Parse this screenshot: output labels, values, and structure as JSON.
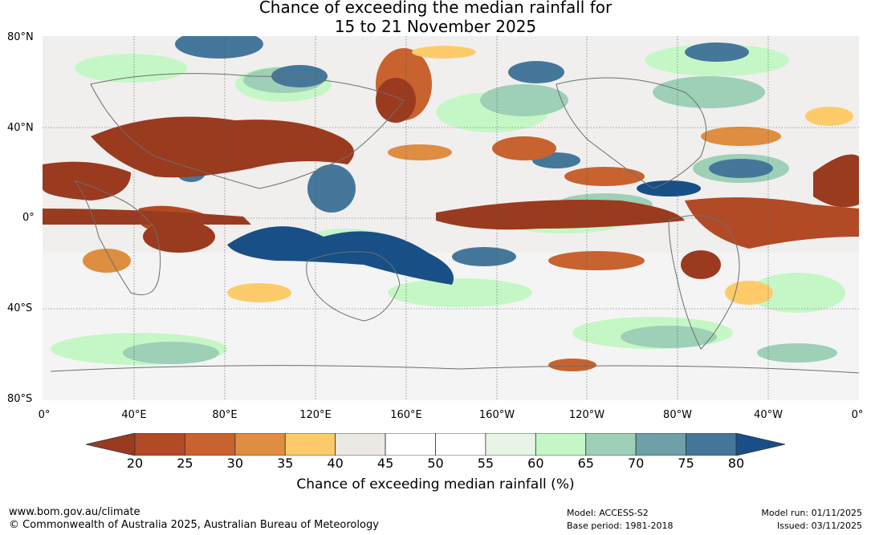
{
  "title": {
    "line1": "Chance of exceeding the median rainfall for",
    "line2": "15 to 21 November 2025"
  },
  "lat_labels": [
    "80°N",
    "40°N",
    "0°",
    "40°S",
    "80°S"
  ],
  "lon_labels": [
    "0°",
    "40°E",
    "80°E",
    "120°E",
    "160°E",
    "160°W",
    "120°W",
    "80°W",
    "40°W",
    "0°"
  ],
  "colorbar": {
    "ticks": [
      "20",
      "25",
      "30",
      "35",
      "40",
      "45",
      "50",
      "55",
      "60",
      "65",
      "70",
      "75",
      "80"
    ],
    "colors": [
      "#9a3a1f",
      "#b24a26",
      "#c8622e",
      "#de8d41",
      "#fdcb6a",
      "#ece8e4",
      "#ffffff",
      "#ffffff",
      "#e8f5e6",
      "#c5f7c6",
      "#9dd0b6",
      "#6fa0a8",
      "#45779a"
    ],
    "low_end_color": "#9a3a1f",
    "high_end_color": "#184f86",
    "label": "Chance of exceeding median rainfall (%)"
  },
  "palette": {
    "very_dry": "#9a3a1f",
    "dry": "#c8622e",
    "mild_dry": "#de8d41",
    "light_dry": "#fdcb6a",
    "neutral": "#ece8e4",
    "light_wet": "#c5f7c6",
    "wet": "#9dd0b6",
    "wetter": "#6fa0a8",
    "very_wet": "#184f86",
    "coast": "#6e6e6e"
  },
  "footer": {
    "website": "www.bom.gov.au/climate",
    "copyright": "© Commonwealth of Australia 2025, Australian Bureau of Meteorology",
    "model": "Model: ACCESS-S2",
    "base_period": "Base period: 1981-2018",
    "model_run": "Model run: 01/11/2025",
    "issued": "Issued: 03/11/2025"
  }
}
